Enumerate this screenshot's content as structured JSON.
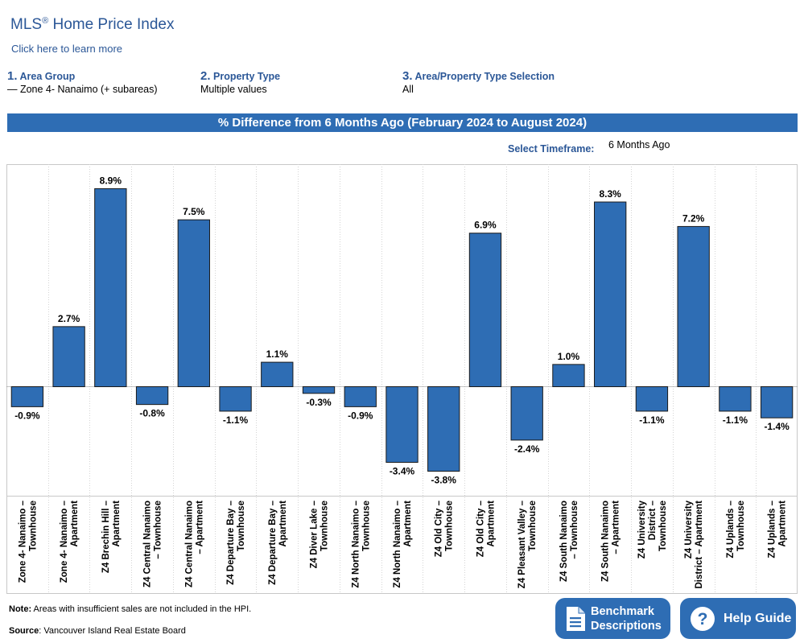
{
  "header": {
    "title": "MLS",
    "title_mark": "®",
    "title_rest": " Home Price Index",
    "learn_link": "Click here to learn more"
  },
  "filters": [
    {
      "num": "1.",
      "label": "Area Group",
      "value": "— Zone 4- Nanaimo (+ subareas)"
    },
    {
      "num": "2.",
      "label": "Property Type",
      "value": "Multiple values"
    },
    {
      "num": "3.",
      "label": "Area/Property Type Selection",
      "value": "All"
    }
  ],
  "timeframe": {
    "label": "Select Timeframe:",
    "value": "6 Months Ago"
  },
  "chart_data": {
    "type": "bar",
    "title": "% Difference from 6 Months Ago (February 2024 to August 2024)",
    "categories": [
      [
        "Zone 4- Nanaimo –",
        "Townhouse"
      ],
      [
        "Zone 4- Nanaimo –",
        "Apartment"
      ],
      [
        "Z4 Brechin Hill –",
        "Apartment"
      ],
      [
        "Z4 Central Nanaimo",
        "– Townhouse"
      ],
      [
        "Z4 Central Nanaimo",
        "– Apartment"
      ],
      [
        "Z4 Departure Bay –",
        "Townhouse"
      ],
      [
        "Z4 Departure Bay –",
        "Apartment"
      ],
      [
        "Z4 Diver Lake –",
        "Townhouse"
      ],
      [
        "Z4 North Nanaimo –",
        "Townhouse"
      ],
      [
        "Z4 North Nanaimo –",
        "Apartment"
      ],
      [
        "Z4 Old City –",
        "Townhouse"
      ],
      [
        "Z4 Old City –",
        "Apartment"
      ],
      [
        "Z4 Pleasant Valley –",
        "Townhouse"
      ],
      [
        "Z4 South Nanaimo",
        "– Townhouse"
      ],
      [
        "Z4 South Nanaimo",
        "– Apartment"
      ],
      [
        "Z4 University",
        "District –",
        "Townhouse"
      ],
      [
        "Z4 University",
        "District – Apartment"
      ],
      [
        "Z4 Uplands –",
        "Townhouse"
      ],
      [
        "Z4 Uplands –",
        "Apartment"
      ]
    ],
    "values": [
      -0.9,
      2.7,
      8.9,
      -0.8,
      7.5,
      -1.1,
      1.1,
      -0.3,
      -0.9,
      -3.4,
      -3.8,
      6.9,
      -2.4,
      1.0,
      8.3,
      -1.1,
      7.2,
      -1.1,
      -1.4
    ],
    "labels": [
      "-0.9%",
      "2.7%",
      "8.9%",
      "-0.8%",
      "7.5%",
      "-1.1%",
      "1.1%",
      "-0.3%",
      "-0.9%",
      "-3.4%",
      "-3.8%",
      "6.9%",
      "-2.4%",
      "1.0%",
      "8.3%",
      "-1.1%",
      "7.2%",
      "-1.1%",
      "-1.4%"
    ],
    "ylim": [
      -4.9,
      10.0
    ],
    "unit": "%",
    "bar_color": "#2e6db4",
    "grid": false
  },
  "footer": {
    "note_label": "Note:",
    "note_text": " Areas with insufficient sales are not included in the HPI.",
    "source_label": "Source",
    "source_text": ": Vancouver Island Real Estate Board"
  },
  "buttons": {
    "bench_line1": "Benchmark",
    "bench_line2": "Descriptions",
    "help": "Help Guide"
  },
  "icons": {
    "bench": "document-icon",
    "help": "question-icon"
  },
  "colors": {
    "brand": "#2b5797",
    "accent": "#2e6db4"
  }
}
